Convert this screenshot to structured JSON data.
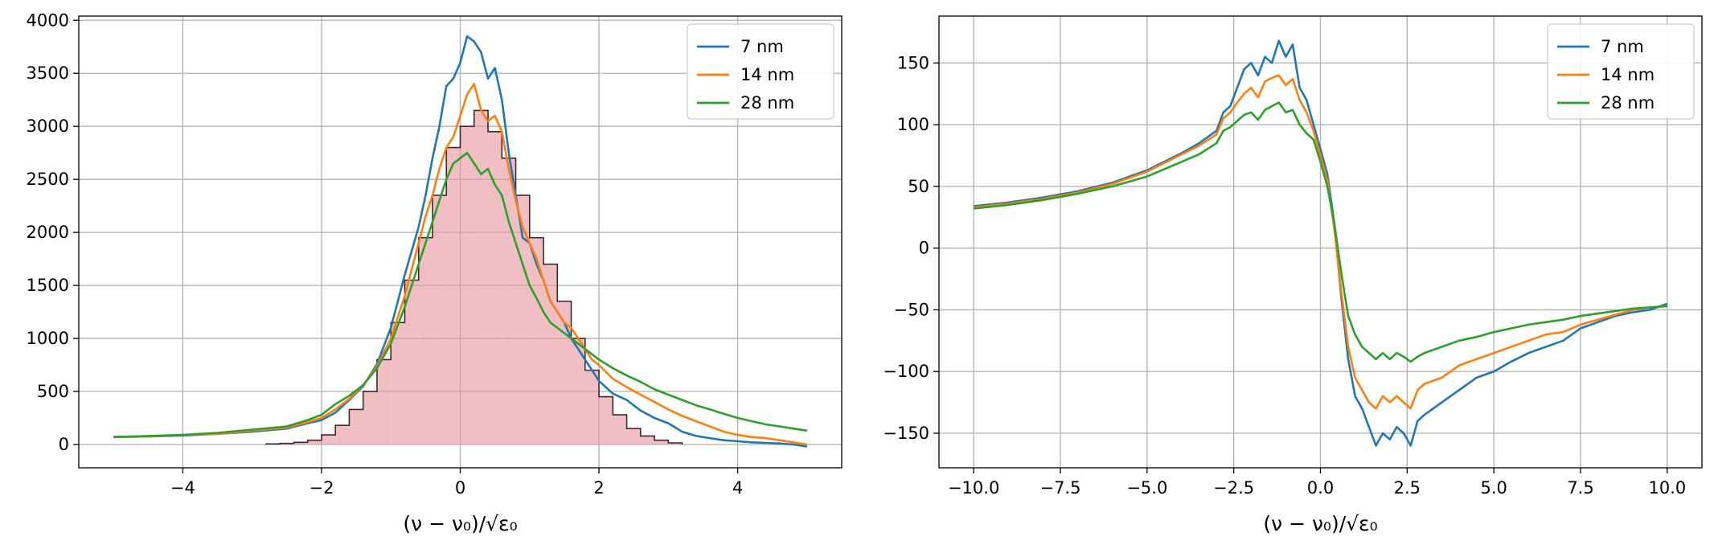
{
  "chart_data": [
    {
      "type": "line",
      "title": "",
      "xlabel": "(ν − ν₀)/√ε₀",
      "ylabel": "",
      "xlim": [
        -5.5,
        5.5
      ],
      "ylim": [
        -220,
        4040
      ],
      "xticks": [
        -4,
        -2,
        0,
        2,
        4
      ],
      "xtick_labels": [
        "−4",
        "−2",
        "0",
        "2",
        "4"
      ],
      "yticks": [
        0,
        500,
        1000,
        1500,
        2000,
        2500,
        3000,
        3500,
        4000
      ],
      "ytick_labels": [
        "0",
        "500",
        "1000",
        "1500",
        "2000",
        "2500",
        "3000",
        "3500",
        "4000"
      ],
      "grid": true,
      "legend": "top-right",
      "series": [
        {
          "name": "7 nm",
          "color": "#1f77b4",
          "x": [
            -5,
            -4.5,
            -4,
            -3.5,
            -3,
            -2.5,
            -2.2,
            -2,
            -1.8,
            -1.6,
            -1.4,
            -1.2,
            -1,
            -0.8,
            -0.6,
            -0.5,
            -0.4,
            -0.3,
            -0.2,
            -0.1,
            0,
            0.1,
            0.2,
            0.3,
            0.4,
            0.5,
            0.6,
            0.7,
            0.8,
            0.9,
            1,
            1.1,
            1.2,
            1.3,
            1.4,
            1.5,
            1.6,
            1.7,
            1.8,
            1.9,
            2,
            2.2,
            2.4,
            2.6,
            2.8,
            3,
            3.2,
            3.4,
            3.6,
            3.8,
            4,
            4.2,
            4.4,
            4.6,
            4.8,
            5
          ],
          "y": [
            70,
            75,
            85,
            100,
            120,
            150,
            200,
            230,
            300,
            420,
            550,
            760,
            1100,
            1600,
            2050,
            2350,
            2700,
            3000,
            3380,
            3450,
            3600,
            3850,
            3800,
            3700,
            3450,
            3550,
            3250,
            2750,
            2350,
            1950,
            1900,
            1700,
            1550,
            1350,
            1250,
            1150,
            1000,
            900,
            800,
            700,
            600,
            480,
            420,
            320,
            250,
            200,
            120,
            80,
            60,
            40,
            30,
            20,
            15,
            10,
            0,
            -20
          ]
        },
        {
          "name": "14 nm",
          "color": "#ff7f0e",
          "x": [
            -5,
            -4.5,
            -4,
            -3.5,
            -3,
            -2.5,
            -2.2,
            -2,
            -1.8,
            -1.6,
            -1.4,
            -1.2,
            -1,
            -0.8,
            -0.6,
            -0.5,
            -0.4,
            -0.3,
            -0.2,
            -0.1,
            0,
            0.1,
            0.2,
            0.3,
            0.4,
            0.5,
            0.6,
            0.7,
            0.8,
            0.9,
            1,
            1.1,
            1.2,
            1.3,
            1.4,
            1.5,
            1.6,
            1.7,
            1.8,
            1.9,
            2,
            2.2,
            2.4,
            2.6,
            2.8,
            3,
            3.2,
            3.4,
            3.6,
            3.8,
            4,
            4.2,
            4.4,
            4.6,
            4.8,
            5
          ],
          "y": [
            70,
            75,
            90,
            100,
            130,
            160,
            210,
            250,
            330,
            430,
            560,
            740,
            1000,
            1400,
            1900,
            2150,
            2350,
            2600,
            2800,
            2900,
            3100,
            3300,
            3400,
            3150,
            3050,
            3100,
            2950,
            2600,
            2300,
            2050,
            1900,
            1750,
            1550,
            1350,
            1250,
            1150,
            1100,
            1000,
            900,
            800,
            750,
            620,
            540,
            470,
            400,
            330,
            270,
            220,
            170,
            120,
            90,
            70,
            60,
            40,
            20,
            0
          ]
        },
        {
          "name": "28 nm",
          "color": "#2ca02c",
          "x": [
            -5,
            -4.5,
            -4,
            -3.5,
            -3,
            -2.5,
            -2.2,
            -2,
            -1.8,
            -1.6,
            -1.4,
            -1.2,
            -1,
            -0.8,
            -0.6,
            -0.5,
            -0.4,
            -0.3,
            -0.2,
            -0.1,
            0,
            0.1,
            0.2,
            0.3,
            0.4,
            0.5,
            0.6,
            0.7,
            0.8,
            0.9,
            1,
            1.1,
            1.2,
            1.3,
            1.4,
            1.5,
            1.6,
            1.7,
            1.8,
            1.9,
            2,
            2.2,
            2.4,
            2.6,
            2.8,
            3,
            3.2,
            3.4,
            3.6,
            3.8,
            4,
            4.2,
            4.4,
            4.6,
            4.8,
            5
          ],
          "y": [
            70,
            80,
            90,
            110,
            140,
            170,
            230,
            280,
            380,
            460,
            560,
            720,
            950,
            1300,
            1700,
            1900,
            2100,
            2300,
            2500,
            2650,
            2700,
            2750,
            2650,
            2550,
            2600,
            2450,
            2350,
            2100,
            1900,
            1700,
            1500,
            1380,
            1250,
            1150,
            1100,
            1050,
            1000,
            950,
            900,
            850,
            800,
            720,
            650,
            590,
            520,
            470,
            420,
            370,
            330,
            290,
            250,
            220,
            190,
            170,
            150,
            130
          ]
        }
      ],
      "histogram": {
        "color": "#e8959b",
        "edges": [
          -2.8,
          -2.6,
          -2.4,
          -2.2,
          -2,
          -1.8,
          -1.6,
          -1.4,
          -1.2,
          -1,
          -0.8,
          -0.6,
          -0.4,
          -0.2,
          0,
          0.2,
          0.4,
          0.6,
          0.8,
          1,
          1.2,
          1.4,
          1.6,
          1.8,
          2,
          2.2,
          2.4,
          2.6,
          2.8,
          3,
          3.2
        ],
        "counts": [
          5,
          10,
          20,
          40,
          90,
          180,
          330,
          500,
          800,
          1150,
          1550,
          1950,
          2350,
          2800,
          3000,
          3150,
          2950,
          2700,
          2350,
          1950,
          1700,
          1350,
          1000,
          700,
          450,
          280,
          150,
          80,
          40,
          15
        ]
      }
    },
    {
      "type": "line",
      "title": "",
      "xlabel": "(ν − ν₀)/√ε₀",
      "ylabel": "",
      "xlim": [
        -11,
        11
      ],
      "ylim": [
        -178,
        188
      ],
      "xticks": [
        -10,
        -7.5,
        -5,
        -2.5,
        0,
        2.5,
        5,
        7.5,
        10
      ],
      "xtick_labels": [
        "−10.0",
        "−7.5",
        "−5.0",
        "−2.5",
        "0.0",
        "2.5",
        "5.0",
        "7.5",
        "10.0"
      ],
      "yticks": [
        -150,
        -100,
        -50,
        0,
        50,
        100,
        150
      ],
      "ytick_labels": [
        "−150",
        "−100",
        "−50",
        "0",
        "50",
        "100",
        "150"
      ],
      "grid": true,
      "legend": "top-right",
      "series": [
        {
          "name": "7 nm",
          "color": "#1f77b4",
          "x": [
            -10,
            -9,
            -8,
            -7,
            -6,
            -5,
            -4.5,
            -4,
            -3.5,
            -3,
            -2.8,
            -2.6,
            -2.4,
            -2.2,
            -2,
            -1.8,
            -1.6,
            -1.4,
            -1.2,
            -1,
            -0.8,
            -0.6,
            -0.4,
            -0.2,
            0,
            0.2,
            0.4,
            0.6,
            0.8,
            1,
            1.2,
            1.4,
            1.6,
            1.8,
            2,
            2.2,
            2.4,
            2.6,
            2.8,
            3,
            3.5,
            4,
            4.5,
            5,
            5.5,
            6,
            6.5,
            7,
            7.5,
            8,
            8.5,
            9,
            9.5,
            10
          ],
          "y": [
            34,
            37,
            41,
            46,
            53,
            63,
            70,
            77,
            85,
            95,
            110,
            115,
            130,
            145,
            150,
            140,
            155,
            150,
            168,
            155,
            165,
            130,
            120,
            100,
            80,
            60,
            20,
            -40,
            -90,
            -120,
            -130,
            -145,
            -160,
            -150,
            -155,
            -145,
            -150,
            -160,
            -140,
            -135,
            -125,
            -115,
            -105,
            -100,
            -92,
            -85,
            -80,
            -75,
            -65,
            -60,
            -55,
            -52,
            -50,
            -45
          ]
        },
        {
          "name": "14 nm",
          "color": "#ff7f0e",
          "x": [
            -10,
            -9,
            -8,
            -7,
            -6,
            -5,
            -4.5,
            -4,
            -3.5,
            -3,
            -2.8,
            -2.6,
            -2.4,
            -2.2,
            -2,
            -1.8,
            -1.6,
            -1.4,
            -1.2,
            -1,
            -0.8,
            -0.6,
            -0.4,
            -0.2,
            0,
            0.2,
            0.4,
            0.6,
            0.8,
            1,
            1.2,
            1.4,
            1.6,
            1.8,
            2,
            2.2,
            2.4,
            2.6,
            2.8,
            3,
            3.5,
            4,
            4.5,
            5,
            5.5,
            6,
            6.5,
            7,
            7.5,
            8,
            8.5,
            9,
            9.5,
            10
          ],
          "y": [
            33,
            36,
            40,
            45,
            52,
            62,
            69,
            76,
            83,
            92,
            105,
            110,
            118,
            125,
            130,
            122,
            135,
            138,
            140,
            132,
            137,
            120,
            110,
            95,
            75,
            55,
            15,
            -35,
            -80,
            -105,
            -115,
            -125,
            -130,
            -120,
            -125,
            -120,
            -125,
            -130,
            -115,
            -110,
            -105,
            -95,
            -90,
            -85,
            -80,
            -75,
            -70,
            -68,
            -62,
            -58,
            -54,
            -50,
            -48,
            -47
          ]
        },
        {
          "name": "28 nm",
          "color": "#2ca02c",
          "x": [
            -10,
            -9,
            -8,
            -7,
            -6,
            -5,
            -4.5,
            -4,
            -3.5,
            -3,
            -2.8,
            -2.6,
            -2.4,
            -2.2,
            -2,
            -1.8,
            -1.6,
            -1.4,
            -1.2,
            -1,
            -0.8,
            -0.6,
            -0.4,
            -0.2,
            0,
            0.2,
            0.4,
            0.6,
            0.8,
            1,
            1.2,
            1.4,
            1.6,
            1.8,
            2,
            2.2,
            2.4,
            2.6,
            2.8,
            3,
            3.5,
            4,
            4.5,
            5,
            5.5,
            6,
            6.5,
            7,
            7.5,
            8,
            8.5,
            9,
            9.5,
            10
          ],
          "y": [
            32,
            35,
            39,
            44,
            50,
            58,
            64,
            70,
            76,
            85,
            95,
            98,
            103,
            108,
            110,
            104,
            112,
            115,
            118,
            110,
            112,
            100,
            93,
            88,
            70,
            50,
            20,
            -20,
            -55,
            -70,
            -80,
            -85,
            -90,
            -85,
            -90,
            -85,
            -88,
            -92,
            -88,
            -85,
            -80,
            -75,
            -72,
            -68,
            -65,
            -62,
            -60,
            -58,
            -55,
            -53,
            -51,
            -49,
            -48,
            -47
          ]
        }
      ]
    }
  ]
}
